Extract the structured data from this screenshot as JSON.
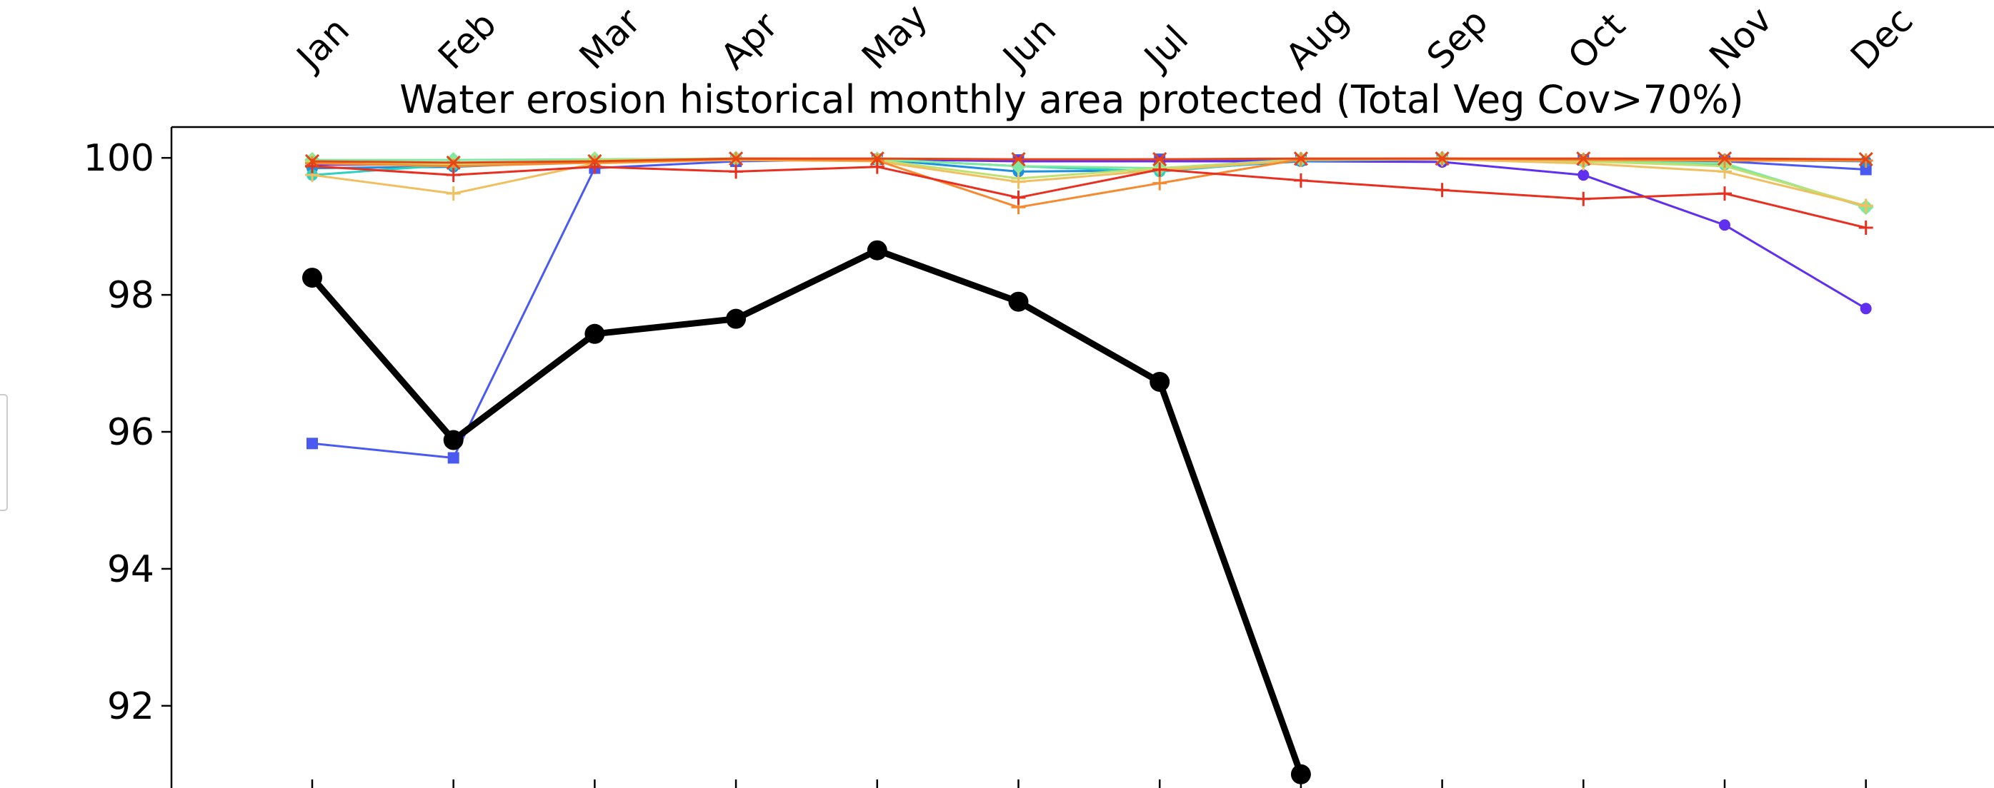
{
  "chart_data": {
    "type": "line",
    "title": "Water erosion historical monthly area protected (Total Veg Cov>70%)",
    "xlabel": "",
    "ylabel": "",
    "categories": [
      "Jan",
      "Feb",
      "Mar",
      "Apr",
      "May",
      "Jun",
      "Jul",
      "Aug",
      "Sep",
      "Oct",
      "Nov",
      "Dec"
    ],
    "ylim": [
      90.8,
      100.45
    ],
    "yticks": [
      92,
      94,
      96,
      98,
      100
    ],
    "yticklabels": [
      "92",
      "94",
      "96",
      "98",
      "100"
    ],
    "grid": false,
    "series": [
      {
        "color": "#4A5AF0",
        "marker": "square",
        "lineWidth": 3,
        "values": [
          95.83,
          95.62,
          99.85,
          99.95,
          99.98,
          99.97,
          99.98,
          99.97,
          99.98,
          99.97,
          99.95,
          99.83
        ]
      },
      {
        "color": "#6030EE",
        "marker": "circle",
        "lineWidth": 3,
        "values": [
          99.9,
          99.9,
          99.95,
          99.98,
          99.98,
          99.95,
          99.95,
          99.95,
          99.94,
          99.75,
          99.02,
          97.8
        ]
      },
      {
        "color": "#1E90E0",
        "marker": "circle",
        "lineWidth": 3,
        "values": [
          99.85,
          99.87,
          99.95,
          99.98,
          99.98,
          99.8,
          99.82,
          99.95,
          99.98,
          99.97,
          99.97,
          99.95
        ]
      },
      {
        "color": "#2ED0C0",
        "marker": "circle",
        "lineWidth": 3,
        "values": [
          99.75,
          99.9,
          99.97,
          99.99,
          99.98,
          99.88,
          99.8,
          99.97,
          99.99,
          99.95,
          99.9,
          99.28
        ]
      },
      {
        "color": "#80E8A0",
        "marker": "diamond",
        "lineWidth": 3,
        "values": [
          99.97,
          99.97,
          99.98,
          99.99,
          99.98,
          99.88,
          99.85,
          99.98,
          99.99,
          99.95,
          99.92,
          99.28
        ]
      },
      {
        "color": "#C0E070",
        "marker": "plus",
        "lineWidth": 3,
        "values": [
          99.95,
          99.9,
          99.97,
          99.99,
          99.97,
          99.7,
          99.85,
          99.97,
          99.99,
          99.95,
          99.88,
          99.3
        ]
      },
      {
        "color": "#F0C060",
        "marker": "plus",
        "lineWidth": 3,
        "values": [
          99.75,
          99.48,
          99.92,
          99.97,
          99.95,
          99.65,
          99.82,
          99.97,
          99.98,
          99.92,
          99.8,
          99.3
        ]
      },
      {
        "color": "#F58A30",
        "marker": "plus",
        "lineWidth": 3,
        "values": [
          99.92,
          99.88,
          99.93,
          99.98,
          99.96,
          99.28,
          99.63,
          99.98,
          99.99,
          99.97,
          99.96,
          99.96
        ]
      },
      {
        "color": "#E83020",
        "marker": "plus",
        "lineWidth": 3,
        "values": [
          99.88,
          99.75,
          99.87,
          99.8,
          99.87,
          99.42,
          99.83,
          99.67,
          99.53,
          99.4,
          99.48,
          98.98
        ]
      },
      {
        "color": "#E84515",
        "marker": "x",
        "lineWidth": 3,
        "values": [
          99.95,
          99.93,
          99.95,
          99.99,
          99.99,
          99.98,
          99.98,
          99.99,
          99.99,
          99.99,
          99.99,
          99.98
        ]
      },
      {
        "color": "#000000",
        "marker": "circle-large",
        "lineWidth": 9,
        "values": [
          98.25,
          95.88,
          97.43,
          97.65,
          98.65,
          97.9,
          96.73,
          91.0,
          null,
          null,
          null,
          null
        ]
      }
    ]
  }
}
